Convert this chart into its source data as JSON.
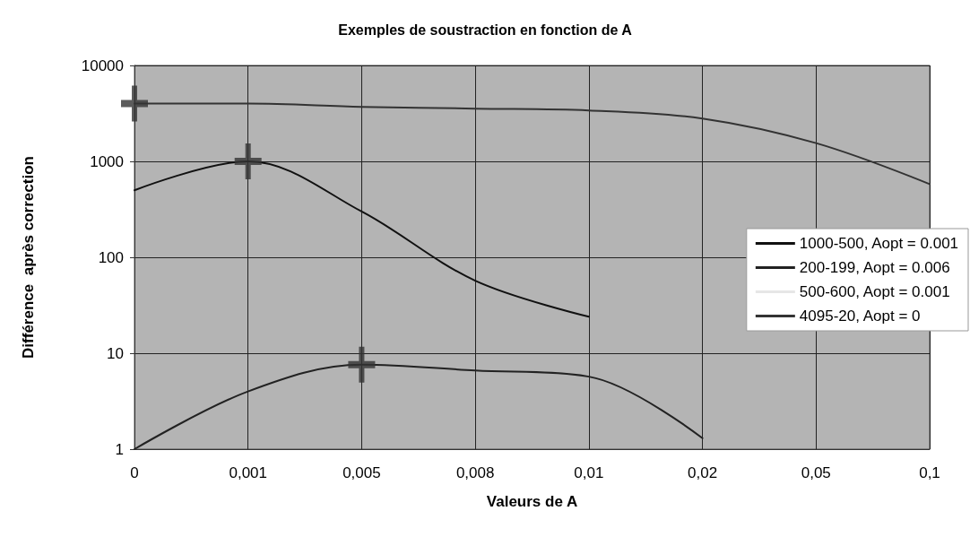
{
  "chart_data": {
    "type": "line",
    "title": "Exemples de soustraction en fonction de A",
    "xlabel": "Valeurs de A",
    "ylabel": "Différence  après correction",
    "categories": [
      "0",
      "0,001",
      "0,005",
      "0,008",
      "0,01",
      "0,02",
      "0,05",
      "0,1"
    ],
    "series": [
      {
        "name": "1000-500, Aopt = 0.001",
        "color": "#111111",
        "values": [
          500,
          1000,
          300,
          57,
          24,
          null,
          null,
          null
        ]
      },
      {
        "name": "200-199, Aopt = 0.006",
        "color": "#222222",
        "values": [
          1,
          4,
          7.6,
          6.6,
          5.7,
          1.3,
          null,
          null
        ]
      },
      {
        "name": "500-600, Aopt = 0.001",
        "color": "#e6e6e6",
        "values": [
          null,
          null,
          null,
          null,
          null,
          null,
          null,
          null
        ]
      },
      {
        "name": "4095-20, Aopt = 0",
        "color": "#333333",
        "values": [
          4000,
          4000,
          3700,
          3550,
          3400,
          2800,
          1550,
          580
        ]
      },
      {
        "type": "scatter",
        "marker": "cross",
        "color": "#333333",
        "x": [
          "0",
          "0,001",
          "0,005"
        ],
        "values": [
          4000,
          1000,
          7.6
        ]
      }
    ],
    "log": "y",
    "ylim": [
      1,
      10000
    ],
    "yticks": [
      1,
      10,
      100,
      1000,
      10000
    ],
    "grid": true,
    "legend": "right",
    "marker": "none"
  }
}
